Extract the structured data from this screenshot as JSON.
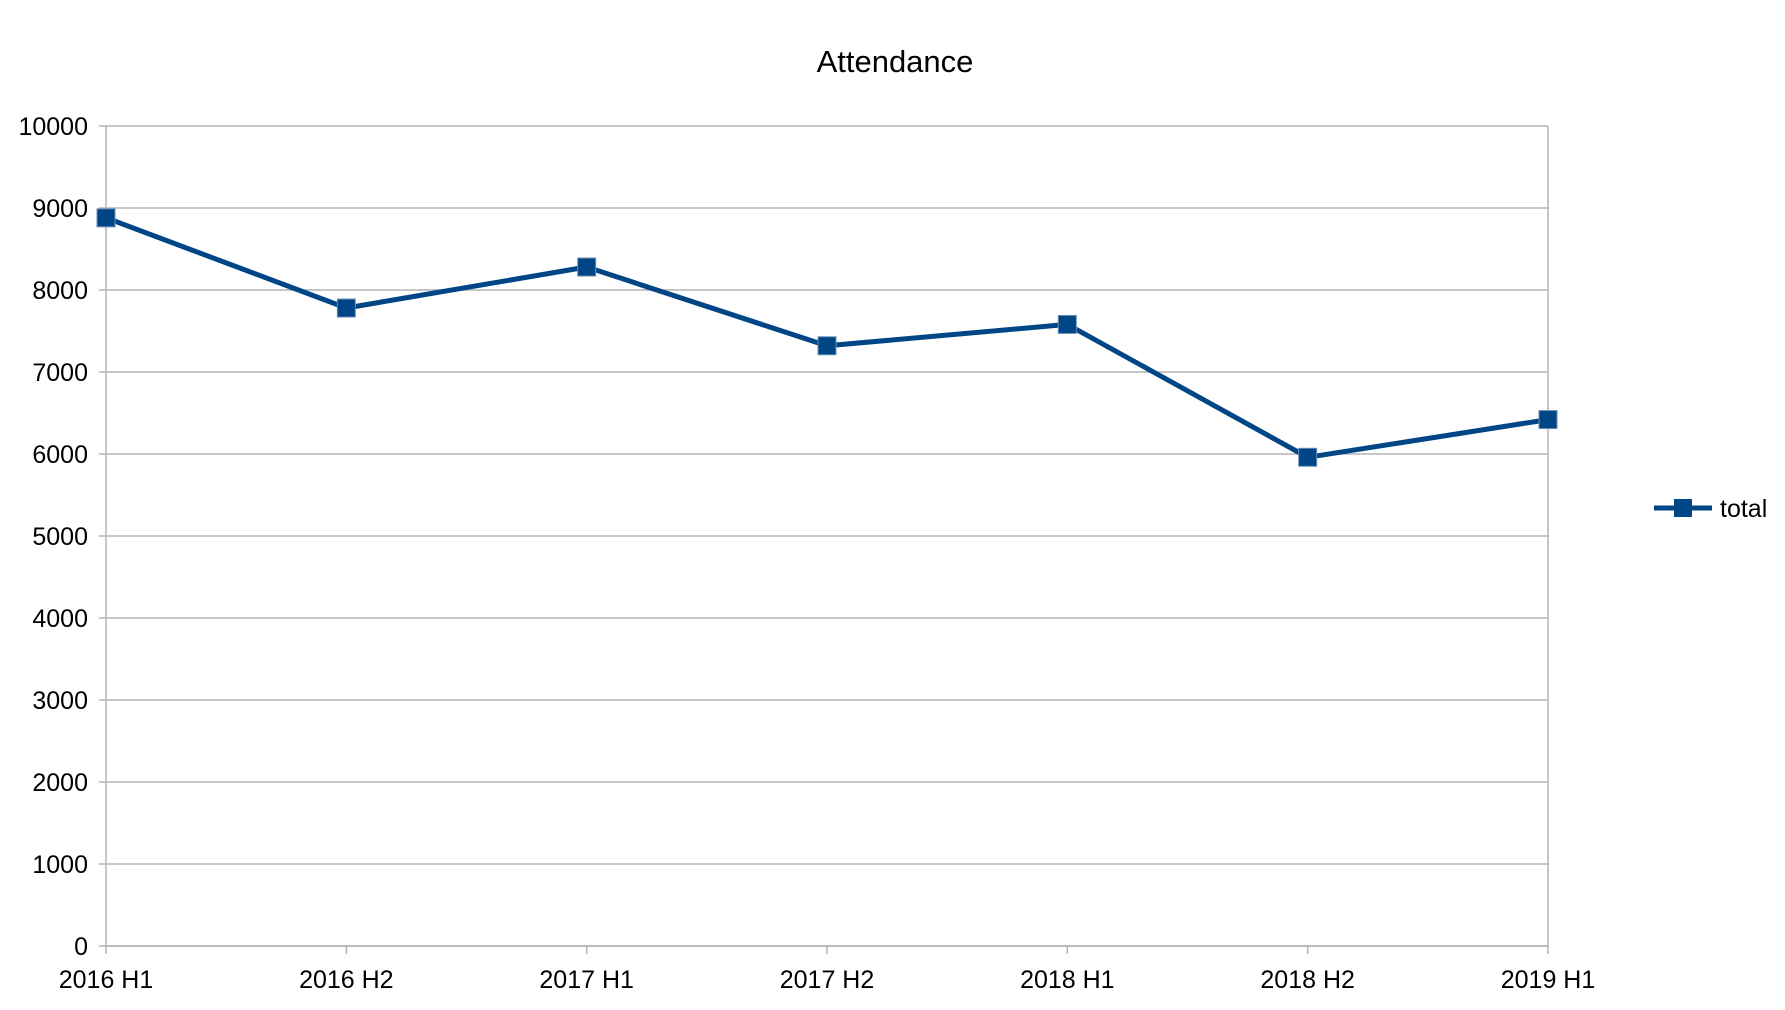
{
  "chart_data": {
    "type": "line",
    "title": "Attendance",
    "xlabel": "",
    "ylabel": "",
    "categories": [
      "2016 H1",
      "2016 H2",
      "2017 H1",
      "2017 H2",
      "2018 H1",
      "2018 H2",
      "2019 H1"
    ],
    "series": [
      {
        "name": "total",
        "values": [
          8880,
          7780,
          8280,
          7320,
          7580,
          5960,
          6420
        ],
        "color": "#004586",
        "marker": "square"
      }
    ],
    "ylim": [
      0,
      10000
    ],
    "yticks": [
      0,
      1000,
      2000,
      3000,
      4000,
      5000,
      6000,
      7000,
      8000,
      9000,
      10000
    ],
    "grid": true,
    "legend_position": "right",
    "colors": {
      "grid": "#b3b3b3",
      "series": "#004586",
      "text": "#000000",
      "background": "#ffffff"
    }
  }
}
